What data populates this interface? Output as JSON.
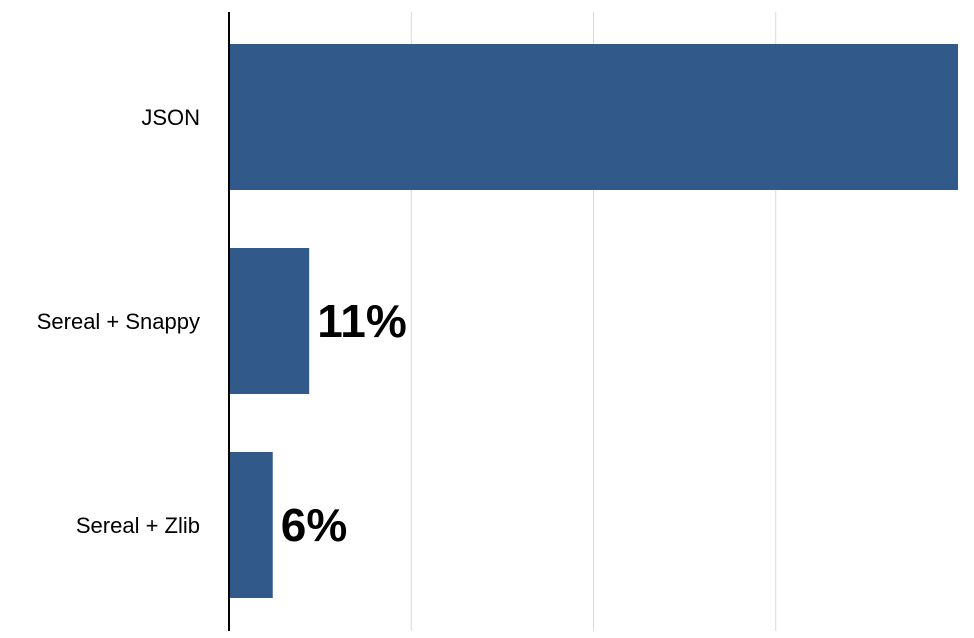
{
  "chart_data": {
    "type": "bar",
    "orientation": "horizontal",
    "categories": [
      "JSON",
      "Sereal + Snappy",
      "Sereal + Zlib"
    ],
    "values": [
      100,
      11,
      6
    ],
    "data_labels": [
      "",
      "11%",
      "6%"
    ],
    "title": "",
    "xlabel": "",
    "ylabel": "",
    "xlim": [
      0,
      100
    ],
    "gridlines_x": [
      25,
      50,
      75
    ],
    "grid": true,
    "legend": "none",
    "bar_color": "#315a8a",
    "grid_color": "#d9d9d9",
    "axis_color": "#000000"
  }
}
